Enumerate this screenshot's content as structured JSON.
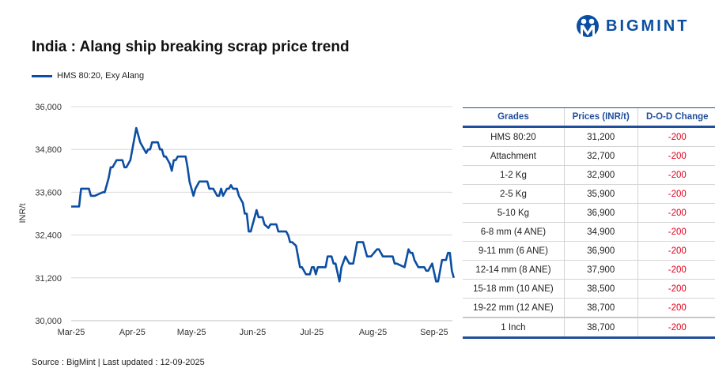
{
  "header": {
    "title": "India : Alang ship breaking scrap price trend",
    "brand": "BIGMINT"
  },
  "source": "Source : BigMint | Last updated : 12-09-2025",
  "colors": {
    "line": "#0b4ea2",
    "header": "#1f4e9c",
    "negative": "#e0001b",
    "grid": "#d9d9d9"
  },
  "table": {
    "headers": [
      "Grades",
      "Prices (INR/t)",
      "D-O-D Change"
    ],
    "rows": [
      [
        "HMS 80:20",
        "31,200",
        "-200"
      ],
      [
        "Attachment",
        "32,700",
        "-200"
      ],
      [
        "1-2 Kg",
        "32,900",
        "-200"
      ],
      [
        "2-5 Kg",
        "35,900",
        "-200"
      ],
      [
        "5-10 Kg",
        "36,900",
        "-200"
      ],
      [
        "6-8 mm (4 ANE)",
        "34,900",
        "-200"
      ],
      [
        "9-11 mm (6 ANE)",
        "36,900",
        "-200"
      ],
      [
        "12-14 mm (8 ANE)",
        "37,900",
        "-200"
      ],
      [
        "15-18 mm (10 ANE)",
        "38,500",
        "-200"
      ],
      [
        "19-22 mm (12 ANE)",
        "38,700",
        "-200"
      ],
      [
        "1 Inch",
        "38,700",
        "-200"
      ]
    ]
  },
  "chart_data": {
    "type": "line",
    "title": "India : Alang ship breaking scrap price trend",
    "xlabel": "",
    "ylabel": "INR/t",
    "ylim": [
      30000,
      36000
    ],
    "yticks": [
      30000,
      31200,
      32400,
      33600,
      34800,
      36000
    ],
    "ytick_labels": [
      "30,000",
      "31,200",
      "32,400",
      "33,600",
      "34,800",
      "36,000"
    ],
    "xtick_labels": [
      "Mar-25",
      "Apr-25",
      "May-25",
      "Jun-25",
      "Jul-25",
      "Aug-25",
      "Sep-25"
    ],
    "xticks": [
      "2025-03-01",
      "2025-04-01",
      "2025-05-01",
      "2025-06-01",
      "2025-07-01",
      "2025-08-01",
      "2025-09-01"
    ],
    "grid": "horizontal",
    "legend": "top-left",
    "series": [
      {
        "name": "HMS 80:20, Exy Alang",
        "color": "#0b4ea2",
        "x": [
          "2025-03-01",
          "2025-03-05",
          "2025-03-06",
          "2025-03-10",
          "2025-03-11",
          "2025-03-13",
          "2025-03-17",
          "2025-03-18",
          "2025-03-20",
          "2025-03-21",
          "2025-03-22",
          "2025-03-24",
          "2025-03-27",
          "2025-03-28",
          "2025-03-29",
          "2025-03-31",
          "2025-04-03",
          "2025-04-05",
          "2025-04-06",
          "2025-04-08",
          "2025-04-09",
          "2025-04-10",
          "2025-04-11",
          "2025-04-14",
          "2025-04-15",
          "2025-04-16",
          "2025-04-17",
          "2025-04-18",
          "2025-04-20",
          "2025-04-21",
          "2025-04-22",
          "2025-04-23",
          "2025-04-24",
          "2025-04-28",
          "2025-04-29",
          "2025-04-30",
          "2025-05-02",
          "2025-05-03",
          "2025-05-05",
          "2025-05-09",
          "2025-05-10",
          "2025-05-12",
          "2025-05-14",
          "2025-05-15",
          "2025-05-16",
          "2025-05-17",
          "2025-05-19",
          "2025-05-20",
          "2025-05-21",
          "2025-05-22",
          "2025-05-24",
          "2025-05-25",
          "2025-05-27",
          "2025-05-28",
          "2025-05-29",
          "2025-05-30",
          "2025-05-31",
          "2025-06-03",
          "2025-06-04",
          "2025-06-06",
          "2025-06-07",
          "2025-06-09",
          "2025-06-10",
          "2025-06-13",
          "2025-06-14",
          "2025-06-18",
          "2025-06-19",
          "2025-06-20",
          "2025-06-21",
          "2025-06-23",
          "2025-06-25",
          "2025-06-26",
          "2025-06-28",
          "2025-06-30",
          "2025-07-01",
          "2025-07-02",
          "2025-07-03",
          "2025-07-04",
          "2025-07-08",
          "2025-07-09",
          "2025-07-11",
          "2025-07-12",
          "2025-07-13",
          "2025-07-15",
          "2025-07-16",
          "2025-07-18",
          "2025-07-20",
          "2025-07-22",
          "2025-07-24",
          "2025-07-27",
          "2025-07-29",
          "2025-07-31",
          "2025-08-03",
          "2025-08-04",
          "2025-08-06",
          "2025-08-11",
          "2025-08-12",
          "2025-08-13",
          "2025-08-17",
          "2025-08-19",
          "2025-08-20",
          "2025-08-21",
          "2025-08-22",
          "2025-08-24",
          "2025-08-27",
          "2025-08-28",
          "2025-08-29",
          "2025-08-31",
          "2025-09-02",
          "2025-09-03",
          "2025-09-05",
          "2025-09-07",
          "2025-09-08",
          "2025-09-09",
          "2025-09-10",
          "2025-09-11"
        ],
        "values": [
          33200,
          33200,
          33700,
          33700,
          33500,
          33500,
          33600,
          33600,
          34000,
          34300,
          34300,
          34500,
          34500,
          34300,
          34300,
          34500,
          35400,
          35000,
          34900,
          34700,
          34800,
          34800,
          35000,
          35000,
          34800,
          34800,
          34600,
          34600,
          34400,
          34200,
          34500,
          34500,
          34600,
          34600,
          34300,
          33900,
          33500,
          33700,
          33900,
          33900,
          33700,
          33700,
          33500,
          33500,
          33700,
          33500,
          33700,
          33700,
          33800,
          33700,
          33700,
          33500,
          33300,
          33000,
          33000,
          32500,
          32500,
          33100,
          32900,
          32900,
          32700,
          32600,
          32700,
          32700,
          32500,
          32500,
          32400,
          32200,
          32200,
          32100,
          31500,
          31500,
          31300,
          31300,
          31500,
          31500,
          31300,
          31500,
          31500,
          31800,
          31800,
          31600,
          31600,
          31100,
          31500,
          31800,
          31600,
          31600,
          32200,
          32200,
          31800,
          31800,
          32000,
          32000,
          31800,
          31800,
          31600,
          31600,
          31500,
          32000,
          31900,
          31900,
          31700,
          31500,
          31500,
          31400,
          31400,
          31600,
          31100,
          31100,
          31700,
          31700,
          31900,
          31900,
          31400,
          31200
        ]
      }
    ]
  }
}
